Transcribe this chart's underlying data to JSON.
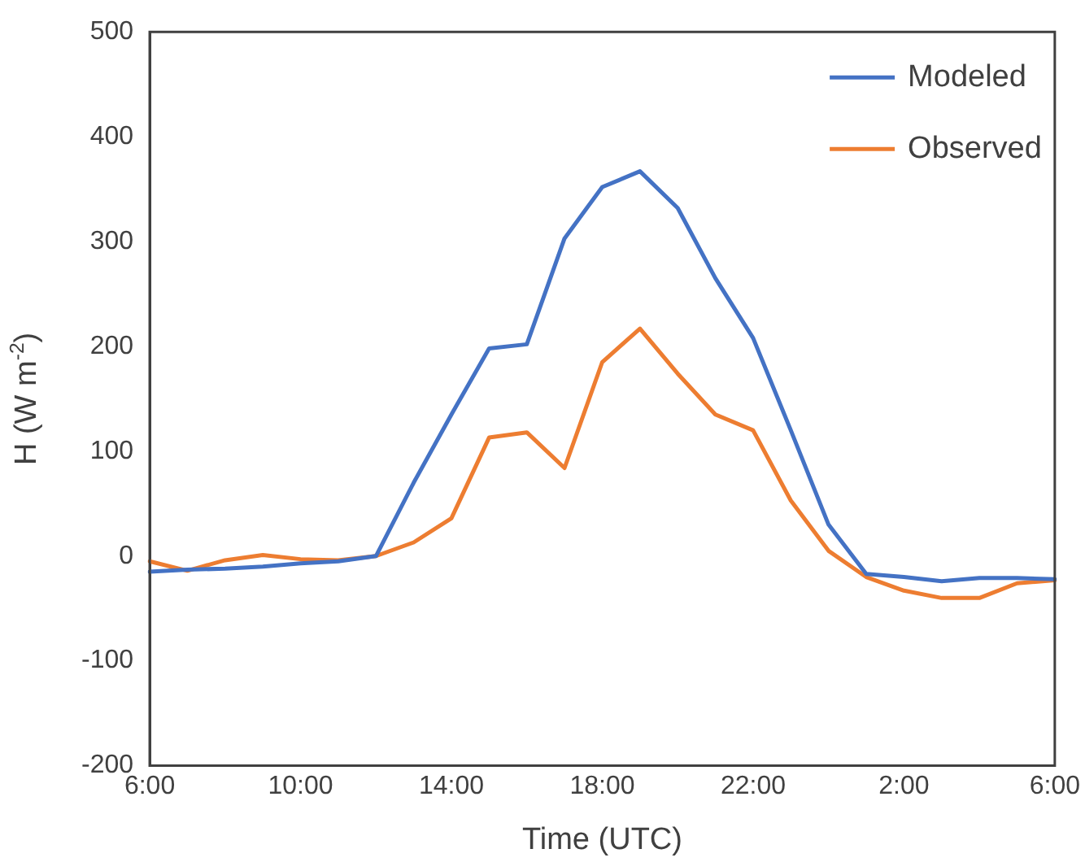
{
  "chart_data": {
    "type": "line",
    "xlabel": "Time (UTC)",
    "ylabel": "H (W m$^{-2}$)",
    "categories": [
      "6:00",
      null,
      null,
      null,
      "10:00",
      null,
      null,
      null,
      "14:00",
      null,
      null,
      null,
      "18:00",
      null,
      null,
      null,
      "22:00",
      null,
      null,
      null,
      "2:00",
      null,
      null,
      null,
      "6:00"
    ],
    "series": [
      {
        "name": "Modeled",
        "color": "#4472c4",
        "values": [
          -15,
          -13,
          -12,
          -10,
          -7,
          -5,
          0,
          70,
          135,
          198,
          202,
          303,
          352,
          367,
          332,
          265,
          208,
          120,
          30,
          -17,
          -20,
          -24,
          -21,
          -21,
          -22
        ]
      },
      {
        "name": "Observed",
        "color": "#ed7d31",
        "values": [
          -5,
          -14,
          -4,
          1,
          -3,
          -4,
          0,
          13,
          36,
          113,
          118,
          84,
          185,
          217,
          174,
          135,
          120,
          53,
          5,
          -20,
          -33,
          -40,
          -40,
          -26,
          -23
        ]
      }
    ],
    "ylim": [
      -200,
      500
    ],
    "yticks": [
      -200,
      -100,
      0,
      100,
      200,
      300,
      400,
      500
    ],
    "grid": false,
    "legend": "top right",
    "marker": "none",
    "line_style": "solid"
  }
}
